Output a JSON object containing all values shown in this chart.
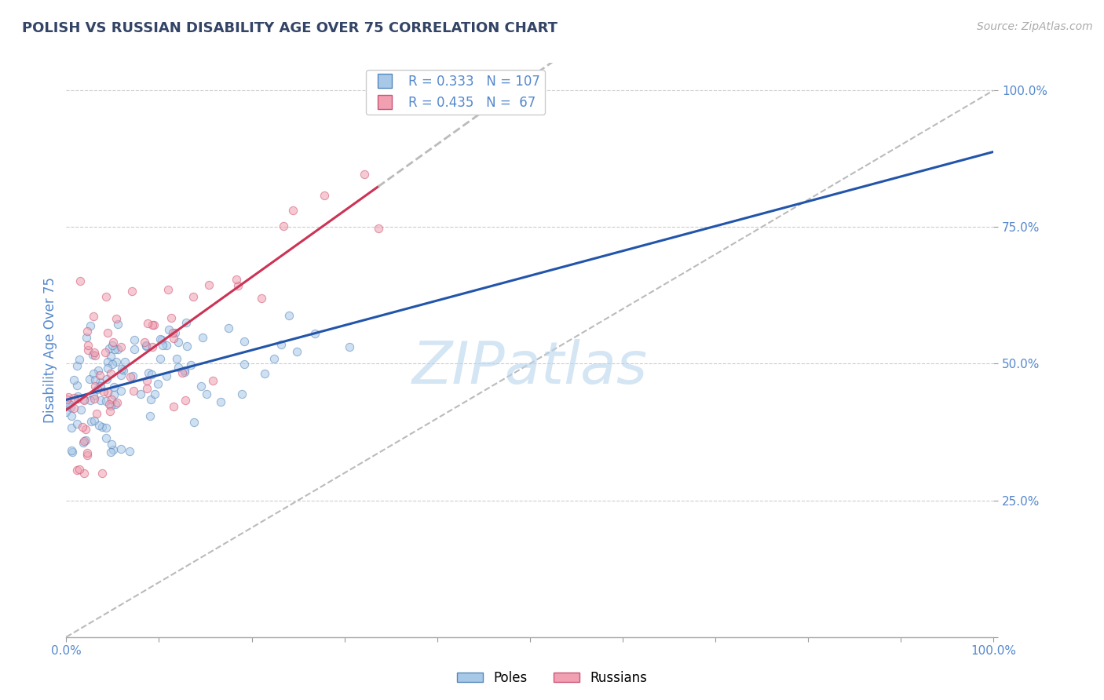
{
  "title": "POLISH VS RUSSIAN DISABILITY AGE OVER 75 CORRELATION CHART",
  "source": "Source: ZipAtlas.com",
  "ylabel": "Disability Age Over 75",
  "poles_R": 0.333,
  "poles_N": 107,
  "russians_R": 0.435,
  "russians_N": 67,
  "poles_color": "#a8c8e8",
  "poles_edge_color": "#5588bb",
  "russians_color": "#f0a0b0",
  "russians_edge_color": "#cc5577",
  "trend_poles_color": "#2255aa",
  "trend_russians_color": "#cc3355",
  "diagonal_color": "#bbbbbb",
  "background_color": "#ffffff",
  "grid_color": "#cccccc",
  "title_color": "#334466",
  "axis_label_color": "#5588cc",
  "tick_label_color": "#5588cc",
  "legend_text_color": "#5588cc",
  "watermark": "ZIPatlas",
  "marker_size": 55,
  "marker_alpha": 0.55,
  "ylim": [
    0.0,
    1.05
  ],
  "xlim": [
    0.0,
    1.0
  ]
}
